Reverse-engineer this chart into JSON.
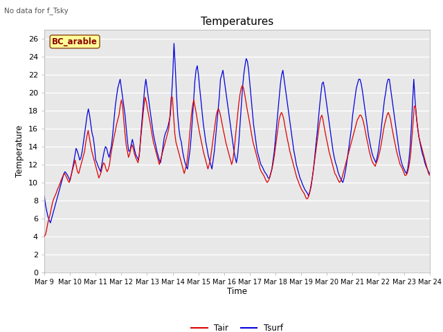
{
  "title": "Temperatures",
  "ylabel": "Temperature",
  "xlabel": "Time",
  "note": "No data for f_Tsky",
  "location_label": "BC_arable",
  "ylim": [
    0,
    27
  ],
  "yticks": [
    0,
    2,
    4,
    6,
    8,
    10,
    12,
    14,
    16,
    18,
    20,
    22,
    24,
    26
  ],
  "xtick_labels": [
    "Mar 9",
    "Mar 10",
    "Mar 11",
    "Mar 12",
    "Mar 13",
    "Mar 14",
    "Mar 15",
    "Mar 16",
    "Mar 17",
    "Mar 18",
    "Mar 19",
    "Mar 20",
    "Mar 21",
    "Mar 22",
    "Mar 23",
    "Mar 24"
  ],
  "tair_color": "#dd0000",
  "tsurf_color": "#0000dd",
  "plot_bg": "#e8e8e8",
  "fig_bg": "#ffffff",
  "legend_labels": [
    "Tair",
    "Tsurf"
  ],
  "tair": [
    4.0,
    4.2,
    4.8,
    5.5,
    6.0,
    6.5,
    7.2,
    7.8,
    8.2,
    8.5,
    8.8,
    9.2,
    9.5,
    9.8,
    10.2,
    10.5,
    10.8,
    11.0,
    10.8,
    10.5,
    10.2,
    10.0,
    10.5,
    11.0,
    11.5,
    12.0,
    12.5,
    11.8,
    11.2,
    11.0,
    11.5,
    12.0,
    12.5,
    13.0,
    13.5,
    14.5,
    15.2,
    15.8,
    15.0,
    14.2,
    13.5,
    13.0,
    12.5,
    12.0,
    11.5,
    11.0,
    10.5,
    10.8,
    11.2,
    11.8,
    12.2,
    12.0,
    11.5,
    11.2,
    11.5,
    12.0,
    13.0,
    13.8,
    14.5,
    15.2,
    15.8,
    16.5,
    17.0,
    17.5,
    18.5,
    19.2,
    18.5,
    17.0,
    15.5,
    14.2,
    13.5,
    12.8,
    13.2,
    13.8,
    14.2,
    13.8,
    13.2,
    12.8,
    12.5,
    12.2,
    13.0,
    14.5,
    15.8,
    17.2,
    18.5,
    19.5,
    19.0,
    18.2,
    17.5,
    16.8,
    16.0,
    15.2,
    14.5,
    14.0,
    13.5,
    13.0,
    12.5,
    12.0,
    12.5,
    13.0,
    13.5,
    14.0,
    14.5,
    15.0,
    15.5,
    16.0,
    17.5,
    19.5,
    19.5,
    17.5,
    15.5,
    14.5,
    14.0,
    13.5,
    13.0,
    12.5,
    12.0,
    11.5,
    11.0,
    11.5,
    12.0,
    13.0,
    14.5,
    16.0,
    17.5,
    18.5,
    19.2,
    18.5,
    17.8,
    17.0,
    16.2,
    15.5,
    14.8,
    14.2,
    13.5,
    13.0,
    12.5,
    12.0,
    11.5,
    12.0,
    12.5,
    13.5,
    14.5,
    15.5,
    16.5,
    17.5,
    18.0,
    18.2,
    17.8,
    17.2,
    16.5,
    15.8,
    15.2,
    14.5,
    14.0,
    13.5,
    13.0,
    12.5,
    12.0,
    12.5,
    13.5,
    14.8,
    16.2,
    17.5,
    18.8,
    19.8,
    20.5,
    20.8,
    20.5,
    19.8,
    19.0,
    18.2,
    17.5,
    16.8,
    16.0,
    15.2,
    14.5,
    14.0,
    13.5,
    13.0,
    12.5,
    12.0,
    11.5,
    11.2,
    11.0,
    10.8,
    10.5,
    10.2,
    10.0,
    10.2,
    10.5,
    11.0,
    11.5,
    12.2,
    13.0,
    14.0,
    15.0,
    16.0,
    17.0,
    17.5,
    17.8,
    17.5,
    17.0,
    16.2,
    15.5,
    14.8,
    14.2,
    13.5,
    13.0,
    12.5,
    12.0,
    11.5,
    11.0,
    10.5,
    10.2,
    9.8,
    9.5,
    9.2,
    9.0,
    8.8,
    8.5,
    8.2,
    8.2,
    8.5,
    9.0,
    9.8,
    10.5,
    11.5,
    12.5,
    13.5,
    14.5,
    15.5,
    16.5,
    17.2,
    17.5,
    17.0,
    16.2,
    15.5,
    14.8,
    14.2,
    13.5,
    13.0,
    12.5,
    12.0,
    11.5,
    11.0,
    10.8,
    10.5,
    10.2,
    10.0,
    10.2,
    10.5,
    11.0,
    11.5,
    12.0,
    12.5,
    13.0,
    13.5,
    14.0,
    14.5,
    15.0,
    15.5,
    16.0,
    16.5,
    17.0,
    17.2,
    17.5,
    17.5,
    17.2,
    16.8,
    16.2,
    15.5,
    14.8,
    14.2,
    13.5,
    13.0,
    12.5,
    12.2,
    12.0,
    11.8,
    12.2,
    12.5,
    13.0,
    13.5,
    14.2,
    15.0,
    15.8,
    16.5,
    17.0,
    17.5,
    17.8,
    17.5,
    17.0,
    16.2,
    15.5,
    14.8,
    14.2,
    13.5,
    13.0,
    12.5,
    12.0,
    11.8,
    11.5,
    11.2,
    10.8,
    10.8,
    11.0,
    11.5,
    12.2,
    13.2,
    15.0,
    16.8,
    18.5,
    18.5,
    17.0,
    16.0,
    15.0,
    14.5,
    14.0,
    13.5,
    13.0,
    12.5,
    12.0,
    11.5,
    11.0,
    10.8
  ],
  "tsurf": [
    8.5,
    7.5,
    6.8,
    6.2,
    5.8,
    5.5,
    6.0,
    6.5,
    7.0,
    7.5,
    8.0,
    8.5,
    9.0,
    9.5,
    10.0,
    10.5,
    11.0,
    11.2,
    11.0,
    10.8,
    10.5,
    10.2,
    10.8,
    11.5,
    12.2,
    13.0,
    13.8,
    13.5,
    13.0,
    12.5,
    12.8,
    13.5,
    14.5,
    15.5,
    16.5,
    17.5,
    18.2,
    17.5,
    16.5,
    15.5,
    15.0,
    14.0,
    12.5,
    12.2,
    11.8,
    11.5,
    11.2,
    12.0,
    12.8,
    13.5,
    14.0,
    13.8,
    13.2,
    12.8,
    13.5,
    14.2,
    15.5,
    17.0,
    18.5,
    19.5,
    20.5,
    21.0,
    21.5,
    20.5,
    19.5,
    18.5,
    17.5,
    16.0,
    14.5,
    13.5,
    13.5,
    14.2,
    14.8,
    14.2,
    13.5,
    13.0,
    12.8,
    12.5,
    13.5,
    15.5,
    17.2,
    19.0,
    20.5,
    21.5,
    20.5,
    19.5,
    18.5,
    17.5,
    16.5,
    15.5,
    14.8,
    14.2,
    13.5,
    13.0,
    12.5,
    12.2,
    13.0,
    14.0,
    15.0,
    15.5,
    15.8,
    16.2,
    16.8,
    17.5,
    19.5,
    22.0,
    25.5,
    23.0,
    20.0,
    17.5,
    16.0,
    15.0,
    14.5,
    13.5,
    12.8,
    12.2,
    11.8,
    11.5,
    12.5,
    13.5,
    15.0,
    17.0,
    19.0,
    21.2,
    22.5,
    23.0,
    22.0,
    20.5,
    19.2,
    17.8,
    16.5,
    15.5,
    14.5,
    13.8,
    13.0,
    12.5,
    12.0,
    11.5,
    12.5,
    13.5,
    15.0,
    16.5,
    18.0,
    19.5,
    21.5,
    22.0,
    22.5,
    21.5,
    20.5,
    19.5,
    18.5,
    17.5,
    16.5,
    15.5,
    14.5,
    13.5,
    12.8,
    12.2,
    13.0,
    14.5,
    16.5,
    18.5,
    20.5,
    22.0,
    23.0,
    23.8,
    23.5,
    22.5,
    21.0,
    19.5,
    18.0,
    16.5,
    15.5,
    14.5,
    13.5,
    13.0,
    12.5,
    12.0,
    11.8,
    11.5,
    11.2,
    11.0,
    10.8,
    10.5,
    10.5,
    11.0,
    11.5,
    12.5,
    13.5,
    15.0,
    16.5,
    18.0,
    19.5,
    21.0,
    22.0,
    22.5,
    21.5,
    20.5,
    19.5,
    18.5,
    17.5,
    16.5,
    15.5,
    14.5,
    13.5,
    12.8,
    12.0,
    11.5,
    11.0,
    10.5,
    10.2,
    9.8,
    9.5,
    9.2,
    9.0,
    8.8,
    8.5,
    9.0,
    9.5,
    10.5,
    11.5,
    12.8,
    14.2,
    15.5,
    17.0,
    18.5,
    19.8,
    21.0,
    21.2,
    20.5,
    19.5,
    18.5,
    17.5,
    16.5,
    15.5,
    14.5,
    13.5,
    12.8,
    12.2,
    11.8,
    11.2,
    10.8,
    10.5,
    10.2,
    10.0,
    10.5,
    11.2,
    12.0,
    13.0,
    14.0,
    15.0,
    16.0,
    17.5,
    18.5,
    19.5,
    20.5,
    21.0,
    21.5,
    21.5,
    21.0,
    20.2,
    19.2,
    18.2,
    17.2,
    16.2,
    15.2,
    14.5,
    13.8,
    13.2,
    12.8,
    12.5,
    12.2,
    12.8,
    13.5,
    14.5,
    15.5,
    16.8,
    18.0,
    19.2,
    20.0,
    21.0,
    21.5,
    21.5,
    20.5,
    19.5,
    18.5,
    17.5,
    16.5,
    15.5,
    14.5,
    13.5,
    12.8,
    12.2,
    11.8,
    11.5,
    11.2,
    11.0,
    11.5,
    12.5,
    14.0,
    16.2,
    19.0,
    21.5,
    19.2,
    17.5,
    16.2,
    15.2,
    14.5,
    13.8,
    13.2,
    12.8,
    12.2,
    11.8,
    11.5,
    11.2,
    11.0
  ]
}
